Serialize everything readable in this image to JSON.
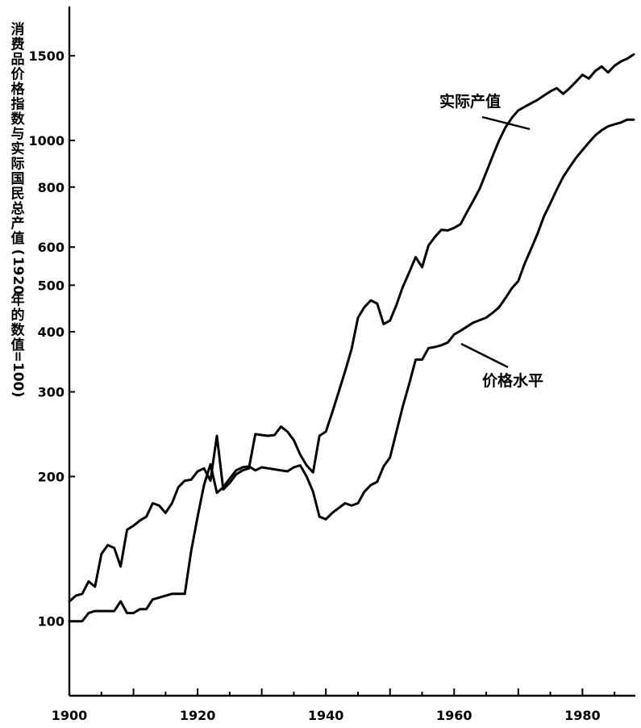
{
  "chart_data": {
    "type": "line",
    "title": "",
    "xlabel": "",
    "ylabel": "消费品价格指数与实际国民总产值(1920年的数值=100)",
    "xlim": [
      1900,
      1988
    ],
    "ylim": [
      70,
      1900
    ],
    "x_ticks": [
      "1900",
      "1920",
      "1940",
      "1960",
      "1980"
    ],
    "y_ticks": [
      "100",
      "200",
      "300",
      "400",
      "500",
      "600",
      "800",
      "1000",
      "1500"
    ],
    "series": [
      {
        "name": "实际产值",
        "x": [
          1900,
          1901,
          1902,
          1903,
          1904,
          1905,
          1906,
          1907,
          1908,
          1909,
          1910,
          1911,
          1912,
          1913,
          1914,
          1915,
          1916,
          1917,
          1918,
          1919,
          1920,
          1921,
          1922,
          1923,
          1924,
          1925,
          1926,
          1927,
          1928,
          1929,
          1930,
          1931,
          1932,
          1933,
          1934,
          1935,
          1936,
          1937,
          1938,
          1939,
          1940,
          1941,
          1942,
          1943,
          1944,
          1945,
          1946,
          1947,
          1948,
          1949,
          1950,
          1951,
          1952,
          1953,
          1954,
          1955,
          1956,
          1957,
          1958,
          1959,
          1960,
          1961,
          1962,
          1963,
          1964,
          1965,
          1966,
          1967,
          1968,
          1969,
          1970,
          1971,
          1972,
          1973,
          1974,
          1975,
          1976,
          1977,
          1978,
          1979,
          1980,
          1981,
          1982,
          1983,
          1984,
          1985,
          1986,
          1987,
          1988
        ],
        "values": [
          110,
          113,
          114,
          121,
          118,
          138,
          144,
          142,
          130,
          155,
          158,
          162,
          165,
          176,
          174,
          168,
          176,
          190,
          196,
          197,
          205,
          208,
          196,
          243,
          188,
          194,
          202,
          206,
          208,
          245,
          244,
          243,
          244,
          254,
          248,
          238,
          222,
          211,
          204,
          243,
          248,
          272,
          300,
          331,
          368,
          428,
          450,
          465,
          458,
          415,
          422,
          455,
          496,
          532,
          572,
          545,
          605,
          630,
          652,
          650,
          658,
          670,
          710,
          750,
          795,
          858,
          928,
          1000,
          1065,
          1115,
          1155,
          1175,
          1195,
          1215,
          1240,
          1265,
          1285,
          1250,
          1285,
          1325,
          1370,
          1345,
          1395,
          1425,
          1385,
          1430,
          1460,
          1480,
          1510
        ]
      },
      {
        "name": "价格水平",
        "x": [
          1900,
          1901,
          1902,
          1903,
          1904,
          1905,
          1906,
          1907,
          1908,
          1909,
          1910,
          1911,
          1912,
          1913,
          1914,
          1915,
          1916,
          1917,
          1918,
          1919,
          1920,
          1921,
          1922,
          1923,
          1924,
          1925,
          1926,
          1927,
          1928,
          1929,
          1930,
          1931,
          1932,
          1933,
          1934,
          1935,
          1936,
          1937,
          1938,
          1939,
          1940,
          1941,
          1942,
          1943,
          1944,
          1945,
          1946,
          1947,
          1948,
          1949,
          1950,
          1951,
          1952,
          1953,
          1954,
          1955,
          1956,
          1957,
          1958,
          1959,
          1960,
          1961,
          1962,
          1963,
          1964,
          1965,
          1966,
          1967,
          1968,
          1969,
          1970,
          1971,
          1972,
          1973,
          1974,
          1975,
          1976,
          1977,
          1978,
          1979,
          1980,
          1981,
          1982,
          1983,
          1984,
          1985,
          1986,
          1987,
          1988
        ],
        "values": [
          100,
          100,
          100,
          104,
          105,
          105,
          105,
          105,
          110,
          104,
          104,
          106,
          106,
          111,
          112,
          113,
          114,
          114,
          114,
          140,
          165,
          192,
          212,
          185,
          190,
          198,
          206,
          209,
          210,
          206,
          209,
          208,
          207,
          206,
          205,
          209,
          211,
          200,
          186,
          165,
          163,
          168,
          172,
          176,
          174,
          176,
          186,
          192,
          195,
          210,
          219,
          248,
          280,
          312,
          350,
          350,
          370,
          372,
          375,
          380,
          395,
          402,
          410,
          418,
          423,
          428,
          438,
          450,
          470,
          493,
          510,
          555,
          595,
          640,
          695,
          740,
          790,
          840,
          880,
          920,
          955,
          990,
          1025,
          1050,
          1070,
          1080,
          1090,
          1105,
          1105
        ]
      }
    ],
    "annotations": [
      "实际产值",
      "价格水平"
    ],
    "grid": false,
    "legend": "none"
  }
}
